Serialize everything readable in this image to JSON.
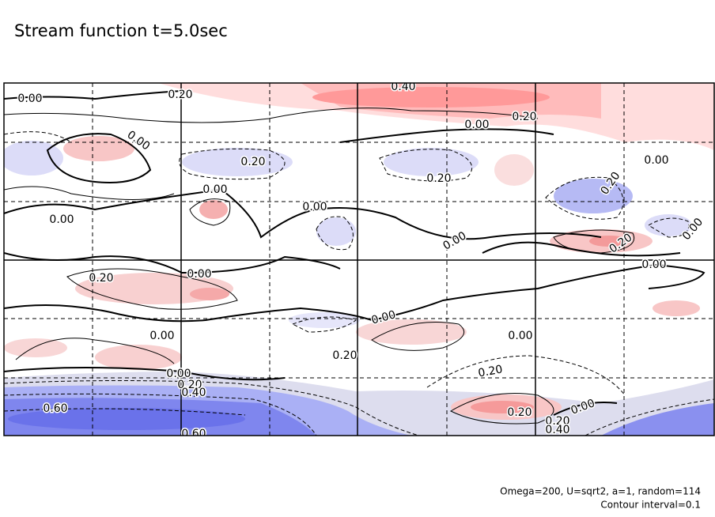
{
  "chart_data": {
    "type": "contour",
    "title": "Stream function t=5.0sec",
    "notes": [
      "Omega=200, U=sqrt2, a=1, random=114",
      "Contour interval=0.1"
    ],
    "contour_labels": [
      "0.40",
      "0.20",
      "0.00",
      "0.00",
      "0.20",
      "0.00",
      "0.20",
      "0.20",
      "0.00",
      "0.20",
      "0.00",
      "0.00",
      "0.00",
      "0.00",
      "0.20",
      "0.00",
      "0.20",
      "0.00",
      "0.00",
      "0.00",
      "0.00",
      "0.00",
      "0.20",
      "0.20",
      "0.00",
      "0.20",
      "0.40",
      "0.60",
      "0.20",
      "0.00",
      "0.20",
      "0.40",
      "0.60"
    ]
  }
}
